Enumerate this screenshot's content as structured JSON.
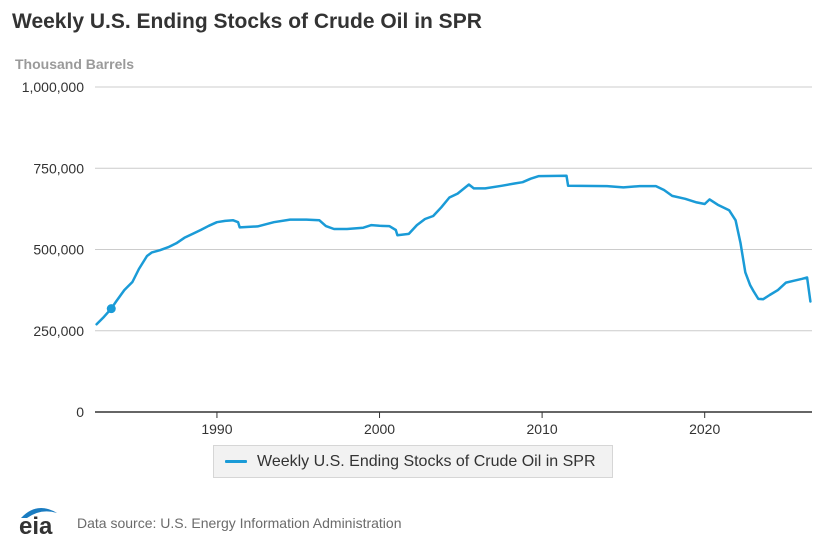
{
  "colors": {
    "series": "#1a9bd7",
    "grid": "#cccccc",
    "axis": "#333333",
    "text": "#333333",
    "subtitle": "#9a9a9a",
    "logo": "#1a7cc1"
  },
  "chart_data": {
    "type": "line",
    "title": "Weekly U.S. Ending Stocks of Crude Oil in SPR",
    "ylabel": "Thousand Barrels",
    "xlabel": "",
    "ylim": [
      0,
      1000000
    ],
    "xlim": [
      1982.5,
      2026.6
    ],
    "yticks": [
      {
        "value": 0,
        "label": "0"
      },
      {
        "value": 250000,
        "label": "250,000"
      },
      {
        "value": 500000,
        "label": "500,000"
      },
      {
        "value": 750000,
        "label": "750,000"
      },
      {
        "value": 1000000,
        "label": "1,000,000"
      }
    ],
    "xticks": [
      {
        "value": 1990,
        "label": "1990"
      },
      {
        "value": 2000,
        "label": "2000"
      },
      {
        "value": 2010,
        "label": "2010"
      },
      {
        "value": 2020,
        "label": "2020"
      }
    ],
    "grid": true,
    "legend": "bottom-center",
    "series": [
      {
        "name": "Weekly U.S. Ending Stocks of Crude Oil in SPR",
        "points": [
          [
            1982.6,
            270000
          ],
          [
            1983.0,
            290000
          ],
          [
            1983.5,
            318000
          ],
          [
            1983.8,
            340000
          ],
          [
            1984.3,
            375000
          ],
          [
            1984.8,
            400000
          ],
          [
            1985.2,
            440000
          ],
          [
            1985.7,
            480000
          ],
          [
            1986.0,
            491000
          ],
          [
            1986.5,
            498000
          ],
          [
            1987.0,
            507000
          ],
          [
            1987.5,
            519000
          ],
          [
            1988.0,
            536000
          ],
          [
            1988.5,
            548000
          ],
          [
            1989.0,
            560000
          ],
          [
            1989.5,
            573000
          ],
          [
            1990.0,
            584000
          ],
          [
            1990.5,
            588000
          ],
          [
            1991.0,
            590000
          ],
          [
            1991.3,
            584000
          ],
          [
            1991.4,
            568000
          ],
          [
            1992.5,
            571000
          ],
          [
            1993.5,
            584000
          ],
          [
            1994.5,
            592000
          ],
          [
            1995.5,
            592000
          ],
          [
            1996.3,
            590000
          ],
          [
            1996.7,
            572000
          ],
          [
            1997.2,
            563000
          ],
          [
            1998.0,
            563000
          ],
          [
            1999.0,
            567000
          ],
          [
            1999.5,
            575000
          ],
          [
            2000.0,
            573000
          ],
          [
            2000.6,
            572000
          ],
          [
            2001.0,
            560000
          ],
          [
            2001.1,
            544000
          ],
          [
            2001.8,
            548000
          ],
          [
            2002.3,
            575000
          ],
          [
            2002.8,
            594000
          ],
          [
            2003.3,
            603000
          ],
          [
            2003.8,
            630000
          ],
          [
            2004.3,
            660000
          ],
          [
            2004.8,
            672000
          ],
          [
            2005.5,
            700000
          ],
          [
            2005.8,
            688000
          ],
          [
            2006.5,
            688000
          ],
          [
            2007.5,
            696000
          ],
          [
            2008.3,
            703000
          ],
          [
            2008.8,
            707000
          ],
          [
            2009.3,
            718000
          ],
          [
            2009.8,
            726000
          ],
          [
            2011.5,
            727000
          ],
          [
            2011.6,
            696000
          ],
          [
            2014.0,
            695000
          ],
          [
            2015.0,
            691000
          ],
          [
            2016.0,
            695000
          ],
          [
            2017.0,
            695000
          ],
          [
            2017.5,
            683000
          ],
          [
            2018.0,
            665000
          ],
          [
            2018.8,
            656000
          ],
          [
            2019.5,
            645000
          ],
          [
            2020.0,
            640000
          ],
          [
            2020.3,
            654000
          ],
          [
            2020.8,
            638000
          ],
          [
            2021.5,
            621000
          ],
          [
            2021.9,
            590000
          ],
          [
            2022.2,
            520000
          ],
          [
            2022.5,
            430000
          ],
          [
            2022.8,
            390000
          ],
          [
            2023.0,
            372000
          ],
          [
            2023.3,
            348000
          ],
          [
            2023.6,
            347000
          ],
          [
            2024.0,
            360000
          ],
          [
            2024.5,
            375000
          ],
          [
            2025.0,
            398000
          ],
          [
            2025.5,
            404000
          ],
          [
            2026.0,
            410000
          ],
          [
            2026.3,
            414000
          ],
          [
            2026.5,
            340000
          ]
        ],
        "marker": {
          "x": 1983.5,
          "y": 318000
        }
      }
    ]
  },
  "footer": {
    "logo_text": "eia",
    "source": "Data source: U.S. Energy Information Administration"
  }
}
